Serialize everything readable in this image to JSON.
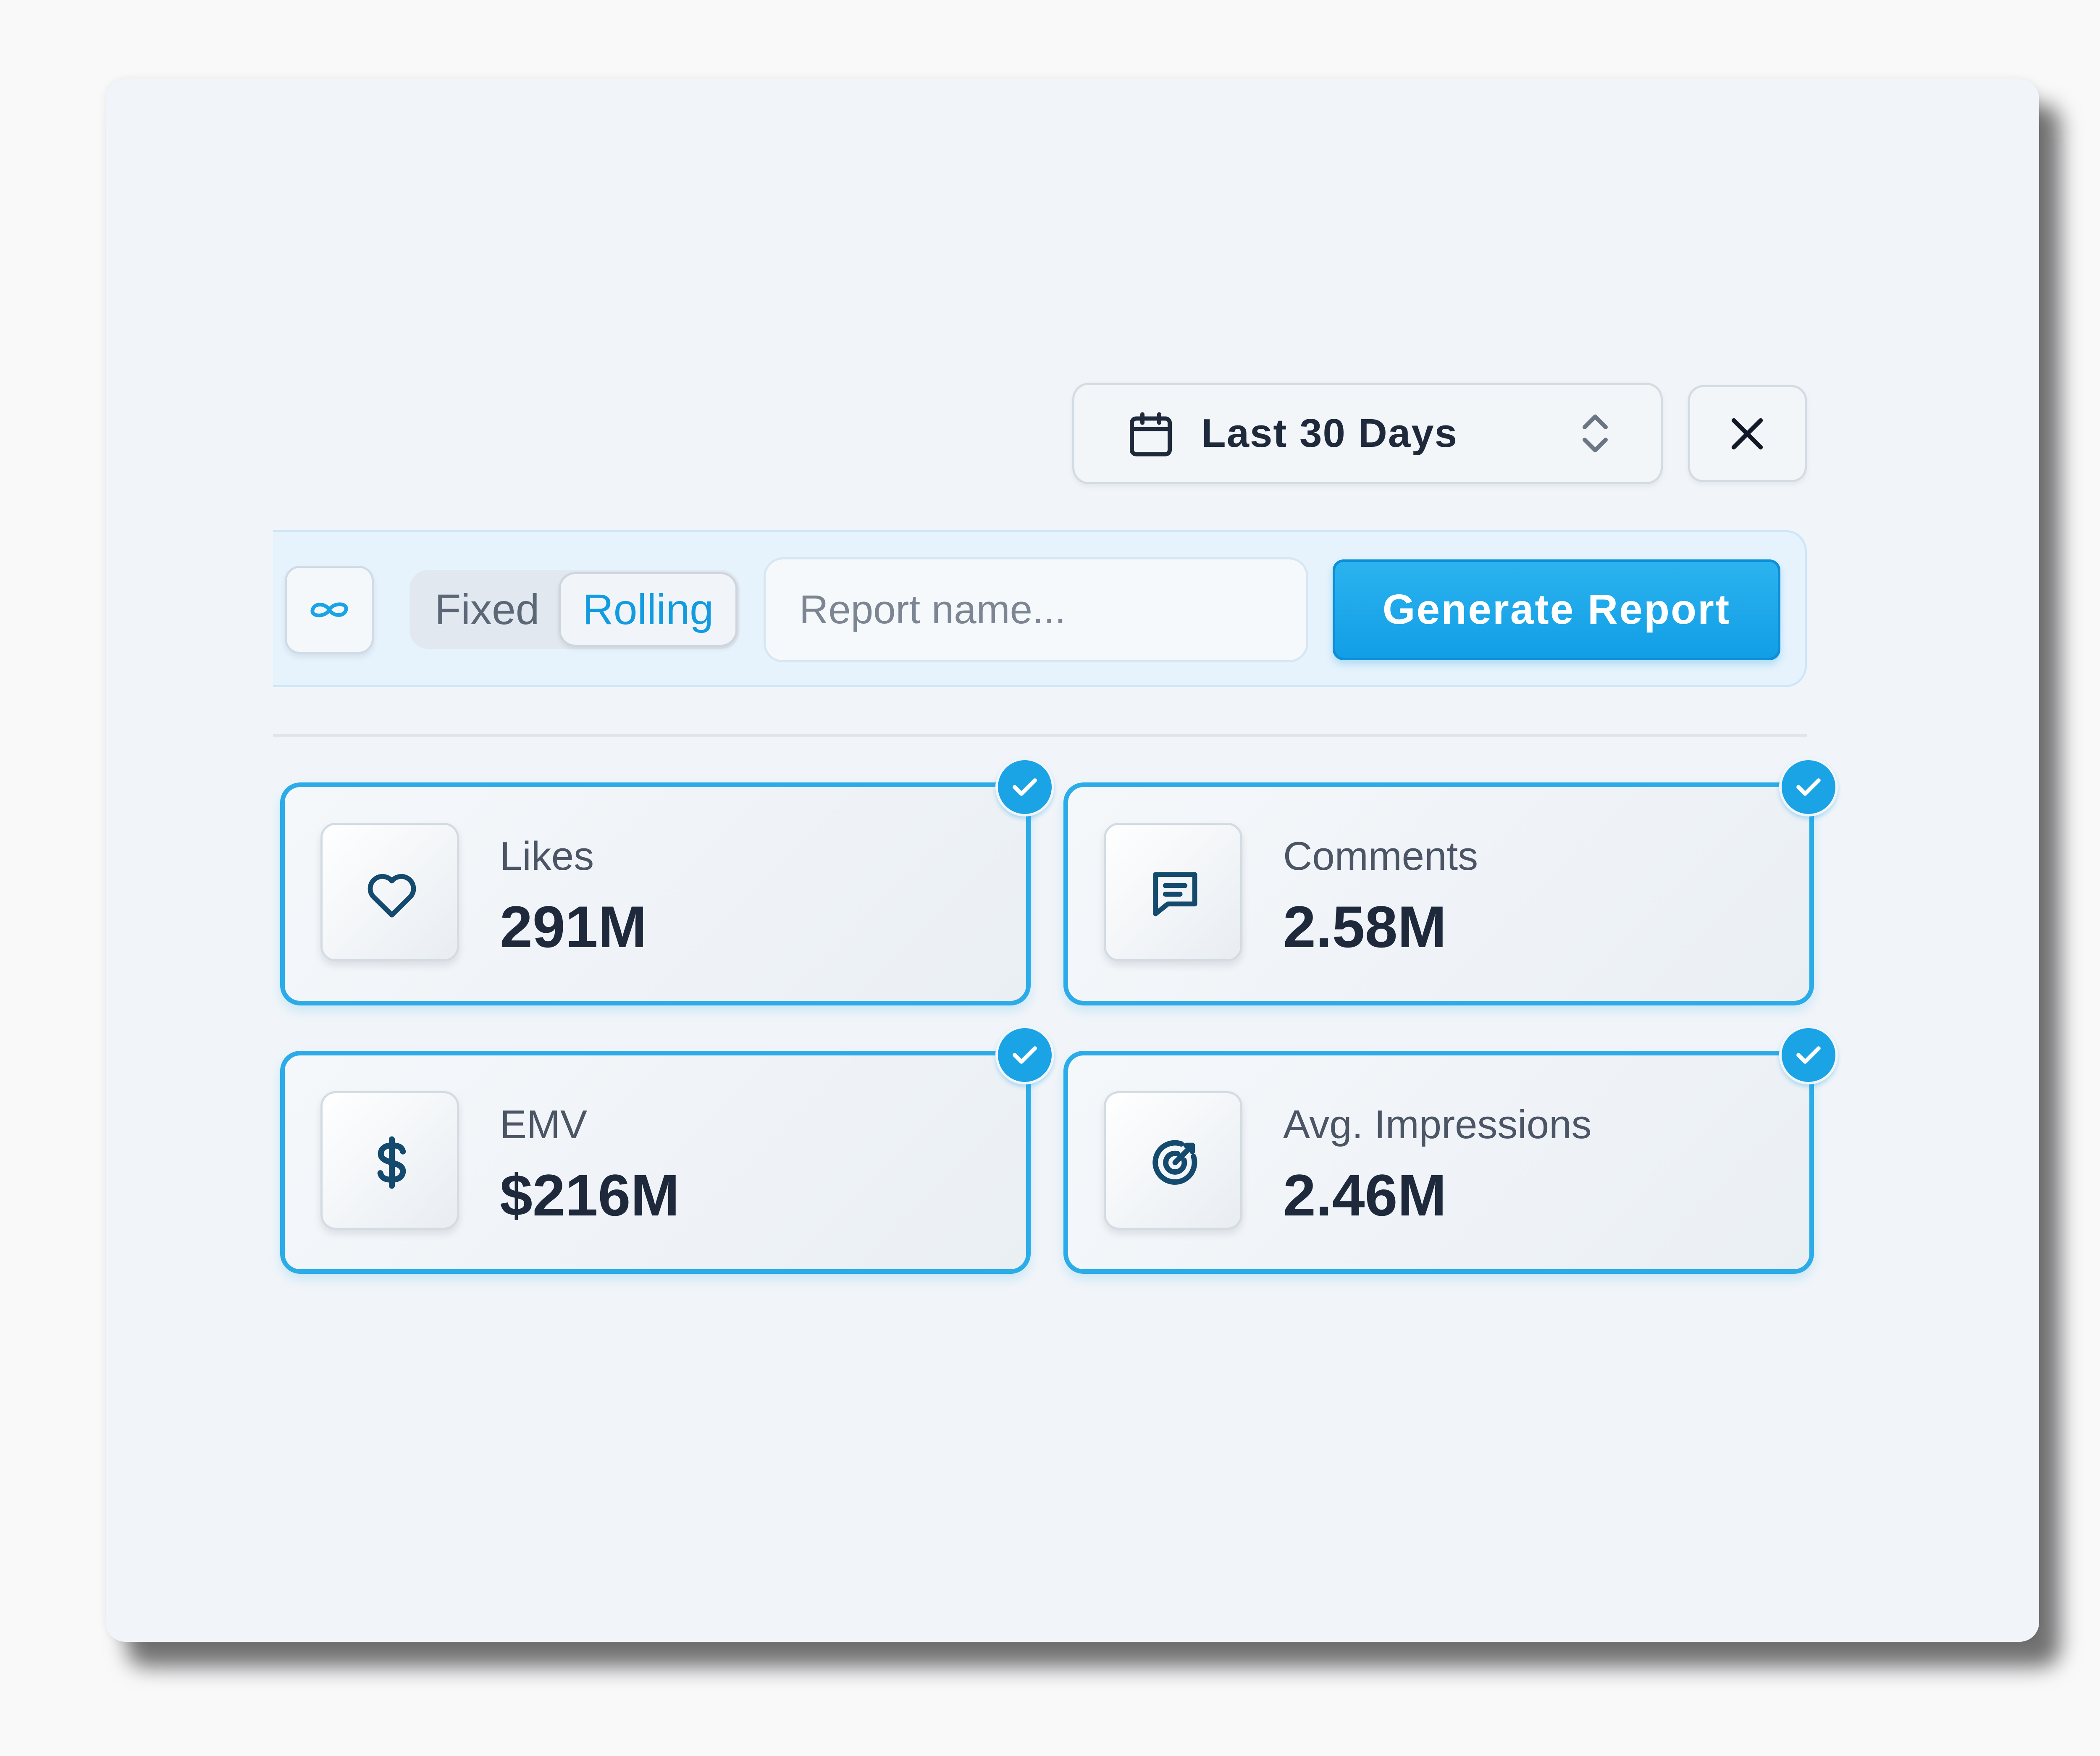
{
  "header": {
    "date_range_label": "Last 30 Days"
  },
  "toolbar": {
    "mode_options": [
      "Fixed",
      "Rolling"
    ],
    "selected_mode": "Rolling",
    "report_name_placeholder": "Report name...",
    "report_name_value": "",
    "generate_label": "Generate Report"
  },
  "metrics": [
    {
      "label": "Likes",
      "value": "291M",
      "icon": "heart-icon",
      "selected": true
    },
    {
      "label": "Comments",
      "value": "2.58M",
      "icon": "message-icon",
      "selected": true
    },
    {
      "label": "EMV",
      "value": "$216M",
      "icon": "dollar-icon",
      "selected": true
    },
    {
      "label": "Avg. Impressions",
      "value": "2.46M",
      "icon": "target-icon",
      "selected": true
    }
  ],
  "colors": {
    "accent": "#1aa3e5",
    "text_primary": "#1e293b",
    "text_muted": "#4b5565",
    "icon": "#134a6d",
    "panel_bg": "#f1f5f9"
  }
}
